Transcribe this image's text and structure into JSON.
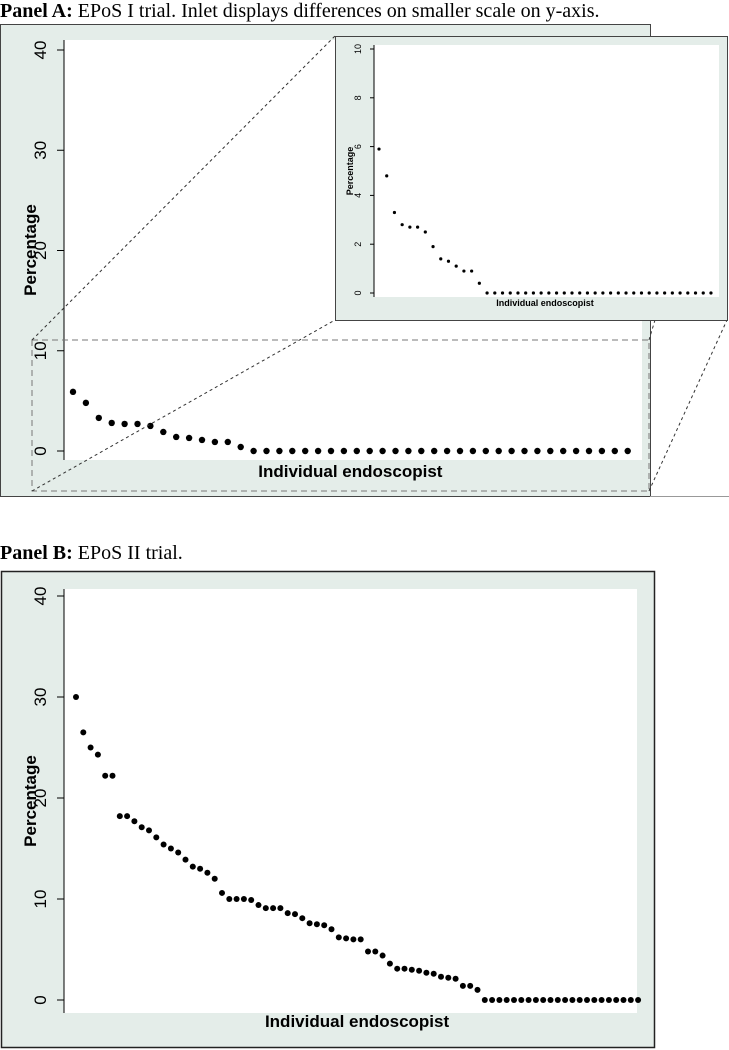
{
  "captions": {
    "panel_a_label": "Panel A:",
    "panel_a_text": " EPoS I trial. Inlet displays differences on smaller scale on y-axis.",
    "panel_b_label": "Panel B:",
    "panel_b_text": " EPoS II trial."
  },
  "colors": {
    "frame_background": "#e4ede9",
    "plot_background": "#ffffff",
    "marker": "#000000",
    "zoom_guides": "#555555"
  },
  "chart_data": [
    {
      "id": "panel_a_main",
      "type": "scatter",
      "xlabel": "Individual endoscopist",
      "ylabel": "Percentage",
      "ylim": [
        0,
        40
      ],
      "yticks": [
        0,
        10,
        20,
        30,
        40
      ],
      "grid": false,
      "values": [
        5.9,
        4.8,
        3.3,
        2.8,
        2.7,
        2.7,
        2.5,
        1.9,
        1.4,
        1.3,
        1.1,
        0.9,
        0.9,
        0.4,
        0,
        0,
        0,
        0,
        0,
        0,
        0,
        0,
        0,
        0,
        0,
        0,
        0,
        0,
        0,
        0,
        0,
        0,
        0,
        0,
        0,
        0,
        0,
        0,
        0,
        0,
        0,
        0,
        0,
        0
      ]
    },
    {
      "id": "panel_a_inset",
      "type": "scatter",
      "xlabel": "Individual endoscopist",
      "ylabel": "Percentage",
      "ylim": [
        0,
        10
      ],
      "yticks": [
        0,
        2,
        4,
        6,
        8,
        10
      ],
      "grid": false,
      "values": [
        5.9,
        4.8,
        3.3,
        2.8,
        2.7,
        2.7,
        2.5,
        1.9,
        1.4,
        1.3,
        1.1,
        0.9,
        0.9,
        0.4,
        0,
        0,
        0,
        0,
        0,
        0,
        0,
        0,
        0,
        0,
        0,
        0,
        0,
        0,
        0,
        0,
        0,
        0,
        0,
        0,
        0,
        0,
        0,
        0,
        0,
        0,
        0,
        0,
        0,
        0
      ]
    },
    {
      "id": "panel_b",
      "type": "scatter",
      "xlabel": "Individual endoscopist",
      "ylabel": "Percentage",
      "ylim": [
        0,
        40
      ],
      "yticks": [
        0,
        10,
        20,
        30,
        40
      ],
      "grid": false,
      "values": [
        30.0,
        26.5,
        25.0,
        24.3,
        22.2,
        22.2,
        18.2,
        18.2,
        17.7,
        17.1,
        16.8,
        16.1,
        15.4,
        15.0,
        14.6,
        13.9,
        13.2,
        13.0,
        12.6,
        12.0,
        10.6,
        10.0,
        10.0,
        10.0,
        9.9,
        9.4,
        9.1,
        9.1,
        9.1,
        8.6,
        8.5,
        8.1,
        7.6,
        7.5,
        7.4,
        7.0,
        6.2,
        6.1,
        6.0,
        6.0,
        4.8,
        4.8,
        4.4,
        3.6,
        3.1,
        3.1,
        3.0,
        2.9,
        2.7,
        2.6,
        2.3,
        2.2,
        2.1,
        1.4,
        1.4,
        1.0,
        0,
        0,
        0,
        0,
        0,
        0,
        0,
        0,
        0,
        0,
        0,
        0,
        0,
        0,
        0,
        0,
        0,
        0,
        0,
        0,
        0,
        0
      ]
    }
  ]
}
